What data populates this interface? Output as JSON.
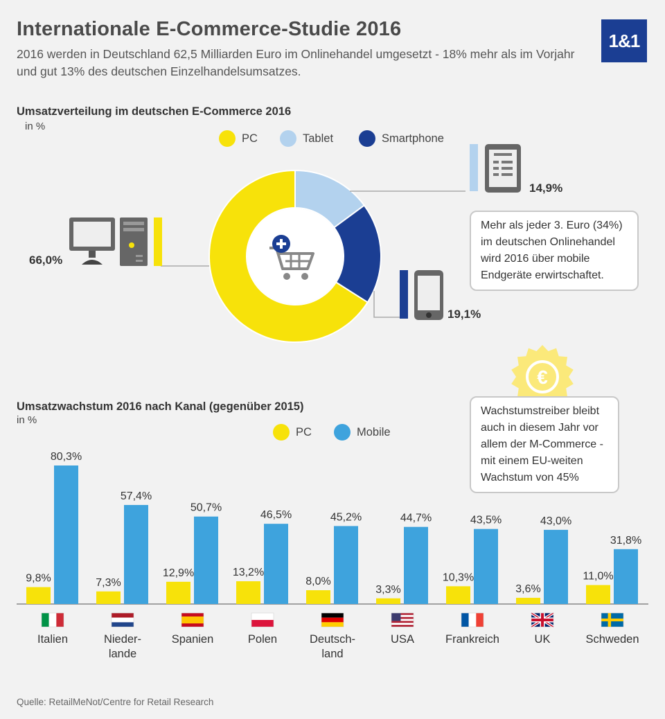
{
  "header": {
    "title": "Internationale E-Commerce-Studie 2016",
    "subtitle": "2016 werden in Deutschland  62,5 Milliarden Euro im Onlinehandel umgesetzt - 18% mehr als im Vorjahr und gut 13% des deutschen Einzelhandelsumsatzes.",
    "logo_text": "1&1"
  },
  "colors": {
    "pc": "#f7e20a",
    "tablet": "#b3d2ee",
    "smartphone": "#1b3e93",
    "mobile": "#3ea3dd",
    "badge": "#fbe97a"
  },
  "donut": {
    "section_title": "Umsatzverteilung im deutschen E-Commerce 2016",
    "unit": "in %",
    "legend": [
      "PC",
      "Tablet",
      "Smartphone"
    ],
    "labels": {
      "pc": "66,0%",
      "tablet": "14,9%",
      "smartphone": "19,1%"
    },
    "icons": [
      "desktop-pc-icon",
      "tablet-icon",
      "smartphone-icon",
      "shopping-cart-icon"
    ],
    "callout": "Mehr als jeder 3. Euro (34%) im deutschen Onlinehandel wird 2016 über mobile Endgeräte erwirtschaftet."
  },
  "bars": {
    "section_title": "Umsatzwachstum 2016 nach Kanal (gegenüber 2015)",
    "unit": "in %",
    "legend": [
      "PC",
      "Mobile"
    ],
    "callout": "Wachstumstreiber bleibt auch in diesem Jahr vor allem der M-Commerce - mit einem EU-weiten Wachstum von 45%",
    "badge_icon": "euro-badge-icon",
    "country_labels": [
      "Italien",
      "Nieder-\nlande",
      "Spanien",
      "Polen",
      "Deutsch-\nland",
      "USA",
      "Frankreich",
      "UK",
      "Schweden"
    ],
    "flag_icons": [
      "italy-flag-icon",
      "netherlands-flag-icon",
      "spain-flag-icon",
      "poland-flag-icon",
      "germany-flag-icon",
      "usa-flag-icon",
      "france-flag-icon",
      "uk-flag-icon",
      "sweden-flag-icon"
    ]
  },
  "source": "Quelle: RetailMeNot/Centre for Retail Research",
  "chart_data": [
    {
      "type": "pie",
      "title": "Umsatzverteilung im deutschen E-Commerce 2016",
      "ylabel": "in %",
      "categories": [
        "PC",
        "Tablet",
        "Smartphone"
      ],
      "values": [
        66.0,
        14.9,
        19.1
      ],
      "value_labels": [
        "66,0%",
        "14,9%",
        "19,1%"
      ],
      "legend_position": "top"
    },
    {
      "type": "bar",
      "title": "Umsatzwachstum 2016 nach Kanal (gegenüber 2015)",
      "ylabel": "in %",
      "categories": [
        "Italien",
        "Niederlande",
        "Spanien",
        "Polen",
        "Deutschland",
        "USA",
        "Frankreich",
        "UK",
        "Schweden"
      ],
      "series": [
        {
          "name": "PC",
          "values": [
            9.8,
            7.3,
            12.9,
            13.2,
            8.0,
            3.3,
            10.3,
            3.6,
            11.0
          ],
          "labels": [
            "9,8%",
            "7,3%",
            "12,9%",
            "13,2%",
            "8,0%",
            "3,3%",
            "10,3%",
            "3,6%",
            "11,0%"
          ]
        },
        {
          "name": "Mobile",
          "values": [
            80.3,
            57.4,
            50.7,
            46.5,
            45.2,
            44.7,
            43.5,
            43.0,
            31.8
          ],
          "labels": [
            "80,3%",
            "57,4%",
            "50,7%",
            "46,5%",
            "45,2%",
            "44,7%",
            "43,5%",
            "43,0%",
            "31,8%"
          ]
        }
      ],
      "ylim": [
        0,
        80.3
      ],
      "grid": false,
      "legend_position": "top"
    }
  ]
}
